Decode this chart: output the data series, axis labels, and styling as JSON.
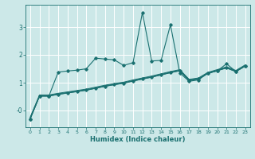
{
  "title": "",
  "xlabel": "Humidex (Indice chaleur)",
  "bg_color": "#cce8e8",
  "grid_color": "#ffffff",
  "line_color": "#1a7070",
  "xlim": [
    -0.5,
    23.5
  ],
  "ylim": [
    -0.6,
    3.8
  ],
  "yticks": [
    0,
    1,
    2,
    3
  ],
  "ytick_labels": [
    "-0",
    "1",
    "2",
    "3"
  ],
  "xticks": [
    0,
    1,
    2,
    3,
    4,
    5,
    6,
    7,
    8,
    9,
    10,
    11,
    12,
    13,
    14,
    15,
    16,
    17,
    18,
    19,
    20,
    21,
    22,
    23
  ],
  "line1_x": [
    0,
    1,
    2,
    3,
    4,
    5,
    6,
    7,
    8,
    9,
    10,
    11,
    12,
    13,
    14,
    15,
    16,
    17,
    18,
    19,
    20,
    21,
    22,
    23
  ],
  "line1_y": [
    -0.3,
    0.52,
    0.52,
    1.38,
    1.42,
    1.45,
    1.5,
    1.88,
    1.85,
    1.82,
    1.62,
    1.72,
    3.52,
    1.78,
    1.8,
    3.08,
    1.35,
    1.05,
    1.1,
    1.35,
    1.42,
    1.68,
    1.4,
    1.6
  ],
  "line2_x": [
    0,
    1,
    2,
    3,
    4,
    5,
    6,
    7,
    8,
    9,
    10,
    11,
    12,
    13,
    14,
    15,
    16,
    17,
    18,
    19,
    20,
    21,
    22,
    23
  ],
  "line2_y": [
    -0.3,
    0.52,
    0.52,
    0.58,
    0.63,
    0.68,
    0.73,
    0.8,
    0.87,
    0.93,
    0.98,
    1.06,
    1.13,
    1.2,
    1.28,
    1.36,
    1.43,
    1.08,
    1.13,
    1.33,
    1.43,
    1.53,
    1.4,
    1.6
  ],
  "line3_x": [
    0,
    1,
    2,
    3,
    4,
    5,
    6,
    7,
    8,
    9,
    10,
    11,
    12,
    13,
    14,
    15,
    16,
    17,
    18,
    19,
    20,
    21,
    22,
    23
  ],
  "line3_y": [
    -0.3,
    0.52,
    0.52,
    0.58,
    0.63,
    0.68,
    0.73,
    0.8,
    0.87,
    0.93,
    0.98,
    1.06,
    1.13,
    1.2,
    1.28,
    1.36,
    1.43,
    1.08,
    1.13,
    1.33,
    1.43,
    1.53,
    1.4,
    1.6
  ],
  "line4_x": [
    0,
    1,
    2,
    3,
    4,
    5,
    6,
    7,
    8,
    9,
    10,
    11,
    12,
    13,
    14,
    15,
    16,
    17,
    18,
    19,
    20,
    21,
    22,
    23
  ],
  "line4_y": [
    -0.27,
    0.54,
    0.54,
    0.6,
    0.65,
    0.7,
    0.75,
    0.82,
    0.89,
    0.95,
    1.0,
    1.08,
    1.15,
    1.22,
    1.3,
    1.38,
    1.45,
    1.1,
    1.15,
    1.35,
    1.45,
    1.55,
    1.42,
    1.62
  ],
  "line5_x": [
    0,
    1,
    2,
    3,
    4,
    5,
    6,
    7,
    8,
    9,
    10,
    11,
    12,
    13,
    14,
    15,
    16,
    17,
    18,
    19,
    20,
    21,
    22,
    23
  ],
  "line5_y": [
    -0.24,
    0.56,
    0.56,
    0.62,
    0.67,
    0.72,
    0.77,
    0.84,
    0.91,
    0.97,
    1.02,
    1.1,
    1.17,
    1.24,
    1.32,
    1.4,
    1.47,
    1.12,
    1.17,
    1.37,
    1.47,
    1.57,
    1.44,
    1.64
  ]
}
